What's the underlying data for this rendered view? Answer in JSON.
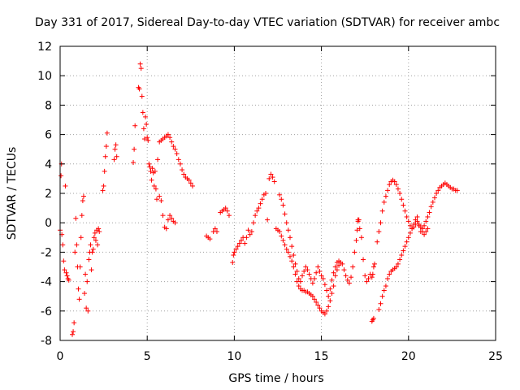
{
  "chart_data": {
    "type": "scatter",
    "title": "Day 331 of 2017, Sidereal Day-to-day VTEC variation (SDTVAR) for receiver ambc",
    "xlabel": "GPS time / hours",
    "ylabel": "SDTVAR / TECUs",
    "xlim": [
      0,
      25
    ],
    "ylim": [
      -8,
      12
    ],
    "xticks": [
      0,
      5,
      10,
      15,
      20,
      25
    ],
    "yticks": [
      -8,
      -6,
      -4,
      -2,
      0,
      2,
      4,
      6,
      8,
      10,
      12
    ],
    "grid": true,
    "marker": "plus",
    "color": "#ff0000",
    "series": [
      {
        "name": "SDTVAR",
        "points": [
          [
            0.0,
            -0.5
          ],
          [
            0.05,
            3.2
          ],
          [
            0.08,
            4.0
          ],
          [
            0.1,
            -0.8
          ],
          [
            0.15,
            -1.5
          ],
          [
            0.2,
            -2.6
          ],
          [
            0.25,
            -3.2
          ],
          [
            0.3,
            2.5
          ],
          [
            0.35,
            -3.4
          ],
          [
            0.4,
            -3.6
          ],
          [
            0.45,
            -3.8
          ],
          [
            0.5,
            -3.9
          ],
          [
            0.7,
            -7.6
          ],
          [
            0.75,
            -7.4
          ],
          [
            0.8,
            -6.8
          ],
          [
            0.85,
            -2.0
          ],
          [
            0.9,
            0.3
          ],
          [
            0.95,
            -1.5
          ],
          [
            1.0,
            -3.0
          ],
          [
            1.05,
            -4.5
          ],
          [
            1.1,
            -5.2
          ],
          [
            1.15,
            -3.0
          ],
          [
            1.2,
            -1.0
          ],
          [
            1.25,
            0.5
          ],
          [
            1.3,
            1.5
          ],
          [
            1.35,
            1.8
          ],
          [
            1.4,
            -4.8
          ],
          [
            1.45,
            -3.5
          ],
          [
            1.5,
            -5.8
          ],
          [
            1.55,
            -4.0
          ],
          [
            1.6,
            -6.0
          ],
          [
            1.65,
            -2.5
          ],
          [
            1.7,
            -2.0
          ],
          [
            1.75,
            -1.5
          ],
          [
            1.8,
            -3.2
          ],
          [
            1.85,
            -2.0
          ],
          [
            1.9,
            -1.8
          ],
          [
            1.95,
            -1.0
          ],
          [
            2.0,
            -0.7
          ],
          [
            2.05,
            -1.2
          ],
          [
            2.1,
            -0.5
          ],
          [
            2.15,
            -1.5
          ],
          [
            2.2,
            -0.4
          ],
          [
            2.25,
            -0.6
          ],
          [
            2.45,
            2.2
          ],
          [
            2.5,
            2.5
          ],
          [
            2.55,
            3.5
          ],
          [
            2.6,
            4.5
          ],
          [
            2.65,
            5.2
          ],
          [
            2.7,
            6.1
          ],
          [
            3.1,
            4.3
          ],
          [
            3.15,
            5.0
          ],
          [
            3.2,
            5.3
          ],
          [
            3.25,
            4.5
          ],
          [
            4.2,
            4.1
          ],
          [
            4.25,
            5.0
          ],
          [
            4.3,
            6.6
          ],
          [
            4.5,
            9.2
          ],
          [
            4.55,
            9.1
          ],
          [
            4.6,
            10.8
          ],
          [
            4.65,
            10.5
          ],
          [
            4.7,
            8.6
          ],
          [
            4.75,
            7.5
          ],
          [
            4.8,
            6.4
          ],
          [
            4.85,
            5.7
          ],
          [
            4.9,
            7.2
          ],
          [
            4.95,
            6.7
          ],
          [
            5.0,
            5.8
          ],
          [
            5.05,
            5.6
          ],
          [
            5.1,
            4.0
          ],
          [
            5.15,
            3.8
          ],
          [
            5.2,
            3.5
          ],
          [
            5.25,
            2.9
          ],
          [
            5.3,
            3.7
          ],
          [
            5.35,
            3.4
          ],
          [
            5.4,
            2.5
          ],
          [
            5.45,
            3.5
          ],
          [
            5.5,
            2.3
          ],
          [
            5.55,
            1.6
          ],
          [
            5.6,
            4.3
          ],
          [
            5.7,
            1.8
          ],
          [
            5.8,
            1.5
          ],
          [
            5.9,
            0.5
          ],
          [
            6.0,
            -0.3
          ],
          [
            6.1,
            -0.4
          ],
          [
            6.2,
            0.2
          ],
          [
            6.3,
            0.5
          ],
          [
            6.4,
            0.3
          ],
          [
            6.5,
            0.1
          ],
          [
            6.6,
            0.0
          ],
          [
            5.7,
            5.5
          ],
          [
            5.8,
            5.6
          ],
          [
            5.9,
            5.7
          ],
          [
            6.0,
            5.8
          ],
          [
            6.1,
            5.9
          ],
          [
            6.2,
            6.0
          ],
          [
            6.3,
            5.8
          ],
          [
            6.4,
            5.5
          ],
          [
            6.5,
            5.2
          ],
          [
            6.6,
            5.0
          ],
          [
            6.7,
            4.7
          ],
          [
            6.8,
            4.3
          ],
          [
            6.9,
            4.0
          ],
          [
            7.0,
            3.6
          ],
          [
            7.1,
            3.3
          ],
          [
            7.2,
            3.1
          ],
          [
            7.3,
            3.0
          ],
          [
            7.4,
            2.9
          ],
          [
            7.5,
            2.7
          ],
          [
            7.6,
            2.5
          ],
          [
            8.4,
            -0.9
          ],
          [
            8.5,
            -1.0
          ],
          [
            8.6,
            -1.1
          ],
          [
            8.8,
            -0.6
          ],
          [
            8.9,
            -0.4
          ],
          [
            9.0,
            -0.6
          ],
          [
            9.2,
            0.7
          ],
          [
            9.3,
            0.8
          ],
          [
            9.4,
            0.9
          ],
          [
            9.5,
            1.0
          ],
          [
            9.6,
            0.8
          ],
          [
            9.7,
            0.5
          ],
          [
            9.9,
            -2.7
          ],
          [
            9.95,
            -2.2
          ],
          [
            10.0,
            -2.0
          ],
          [
            10.1,
            -1.8
          ],
          [
            10.2,
            -1.6
          ],
          [
            10.3,
            -1.4
          ],
          [
            10.4,
            -1.2
          ],
          [
            10.5,
            -1.0
          ],
          [
            10.6,
            -1.4
          ],
          [
            10.7,
            -1.0
          ],
          [
            10.8,
            -0.5
          ],
          [
            10.9,
            -0.8
          ],
          [
            11.0,
            -0.6
          ],
          [
            11.1,
            0.0
          ],
          [
            11.2,
            0.5
          ],
          [
            11.3,
            0.8
          ],
          [
            11.4,
            1.0
          ],
          [
            11.5,
            1.3
          ],
          [
            11.6,
            1.6
          ],
          [
            11.7,
            1.9
          ],
          [
            11.8,
            2.0
          ],
          [
            11.9,
            0.2
          ],
          [
            12.0,
            3.0
          ],
          [
            12.1,
            3.3
          ],
          [
            12.2,
            3.1
          ],
          [
            12.3,
            2.8
          ],
          [
            12.4,
            -0.4
          ],
          [
            12.5,
            -0.5
          ],
          [
            12.6,
            -0.6
          ],
          [
            12.7,
            -0.9
          ],
          [
            12.8,
            -1.2
          ],
          [
            12.9,
            -1.5
          ],
          [
            13.0,
            -1.8
          ],
          [
            13.1,
            -2.0
          ],
          [
            13.2,
            -2.3
          ],
          [
            13.3,
            -2.6
          ],
          [
            13.4,
            -3.0
          ],
          [
            13.5,
            -3.5
          ],
          [
            13.6,
            -4.0
          ],
          [
            13.7,
            -4.3
          ],
          [
            13.8,
            -4.5
          ],
          [
            13.9,
            -4.6
          ],
          [
            14.0,
            -4.6
          ],
          [
            14.1,
            -4.7
          ],
          [
            14.2,
            -4.7
          ],
          [
            14.3,
            -4.8
          ],
          [
            14.4,
            -4.9
          ],
          [
            14.5,
            -5.0
          ],
          [
            14.6,
            -5.2
          ],
          [
            14.7,
            -5.4
          ],
          [
            14.8,
            -5.6
          ],
          [
            14.9,
            -5.8
          ],
          [
            15.0,
            -6.0
          ],
          [
            15.1,
            -6.1
          ],
          [
            15.2,
            -6.2
          ],
          [
            15.3,
            -6.0
          ],
          [
            15.4,
            -5.7
          ],
          [
            15.5,
            -5.3
          ],
          [
            15.6,
            -4.8
          ],
          [
            15.7,
            -4.3
          ],
          [
            15.8,
            -3.6
          ],
          [
            15.9,
            -3.2
          ],
          [
            16.0,
            -2.9
          ],
          [
            16.1,
            -2.7
          ],
          [
            16.2,
            -2.8
          ],
          [
            16.3,
            -3.2
          ],
          [
            16.4,
            -3.6
          ],
          [
            16.5,
            -3.9
          ],
          [
            16.6,
            -4.1
          ],
          [
            16.7,
            -3.7
          ],
          [
            16.8,
            -3.0
          ],
          [
            16.9,
            -2.0
          ],
          [
            17.0,
            -1.2
          ],
          [
            17.05,
            -0.5
          ],
          [
            17.1,
            0.1
          ],
          [
            17.15,
            0.2
          ],
          [
            12.6,
            1.9
          ],
          [
            12.7,
            1.6
          ],
          [
            12.8,
            1.2
          ],
          [
            12.9,
            0.6
          ],
          [
            13.0,
            0.0
          ],
          [
            13.1,
            -0.5
          ],
          [
            13.2,
            -1.0
          ],
          [
            13.3,
            -1.6
          ],
          [
            13.4,
            -2.2
          ],
          [
            13.5,
            -2.8
          ],
          [
            13.6,
            -3.3
          ],
          [
            13.7,
            -3.8
          ],
          [
            13.8,
            -4.0
          ],
          [
            13.9,
            -3.6
          ],
          [
            14.0,
            -3.3
          ],
          [
            14.1,
            -3.0
          ],
          [
            14.2,
            -3.2
          ],
          [
            14.3,
            -3.5
          ],
          [
            14.4,
            -3.8
          ],
          [
            14.5,
            -4.1
          ],
          [
            14.6,
            -3.8
          ],
          [
            14.7,
            -3.4
          ],
          [
            14.8,
            -3.0
          ],
          [
            14.9,
            -3.3
          ],
          [
            15.0,
            -3.6
          ],
          [
            15.1,
            -3.8
          ],
          [
            15.2,
            -4.2
          ],
          [
            15.3,
            -4.6
          ],
          [
            15.4,
            -5.0
          ],
          [
            15.5,
            -4.5
          ],
          [
            15.6,
            -3.9
          ],
          [
            15.7,
            -3.4
          ],
          [
            15.8,
            -3.0
          ],
          [
            15.9,
            -2.7
          ],
          [
            16.0,
            -2.6
          ],
          [
            17.9,
            -3.7
          ],
          [
            17.95,
            -3.5
          ],
          [
            18.0,
            -3.0
          ],
          [
            18.05,
            -2.8
          ],
          [
            17.9,
            -6.7
          ],
          [
            17.95,
            -6.6
          ],
          [
            18.0,
            -6.5
          ],
          [
            18.3,
            -5.9
          ],
          [
            18.4,
            -5.5
          ],
          [
            18.5,
            -5.0
          ],
          [
            18.6,
            -4.6
          ],
          [
            18.7,
            -4.3
          ],
          [
            18.8,
            -3.8
          ],
          [
            18.9,
            -3.5
          ],
          [
            19.0,
            -3.3
          ],
          [
            19.1,
            -3.2
          ],
          [
            19.2,
            -3.1
          ],
          [
            19.3,
            -3.0
          ],
          [
            19.4,
            -2.8
          ],
          [
            19.5,
            -2.5
          ],
          [
            19.6,
            -2.2
          ],
          [
            19.7,
            -1.9
          ],
          [
            19.8,
            -1.6
          ],
          [
            19.9,
            -1.3
          ],
          [
            20.0,
            -1.0
          ],
          [
            20.1,
            -0.7
          ],
          [
            20.2,
            -0.4
          ],
          [
            20.3,
            -0.1
          ],
          [
            20.4,
            0.2
          ],
          [
            20.5,
            0.4
          ],
          [
            20.6,
            -0.2
          ],
          [
            20.7,
            -0.6
          ],
          [
            20.8,
            -0.4
          ],
          [
            20.9,
            -0.2
          ],
          [
            21.0,
            0.1
          ],
          [
            21.1,
            0.4
          ],
          [
            21.2,
            0.7
          ],
          [
            21.3,
            1.1
          ],
          [
            21.4,
            1.4
          ],
          [
            21.5,
            1.7
          ],
          [
            21.6,
            2.0
          ],
          [
            21.7,
            2.2
          ],
          [
            21.8,
            2.4
          ],
          [
            21.9,
            2.5
          ],
          [
            22.0,
            2.6
          ],
          [
            22.1,
            2.7
          ],
          [
            22.2,
            2.6
          ],
          [
            22.3,
            2.5
          ],
          [
            22.4,
            2.4
          ],
          [
            22.5,
            2.3
          ],
          [
            22.6,
            2.3
          ],
          [
            22.7,
            2.2
          ],
          [
            22.8,
            2.2
          ],
          [
            18.2,
            -1.3
          ],
          [
            18.3,
            -0.6
          ],
          [
            18.4,
            0.0
          ],
          [
            18.5,
            0.8
          ],
          [
            18.6,
            1.4
          ],
          [
            18.7,
            1.8
          ],
          [
            18.8,
            2.2
          ],
          [
            18.9,
            2.6
          ],
          [
            19.0,
            2.8
          ],
          [
            19.1,
            2.9
          ],
          [
            19.2,
            2.8
          ],
          [
            19.3,
            2.6
          ],
          [
            19.4,
            2.3
          ],
          [
            19.5,
            2.0
          ],
          [
            19.6,
            1.6
          ],
          [
            19.7,
            1.2
          ],
          [
            19.8,
            0.8
          ],
          [
            19.9,
            0.4
          ],
          [
            20.0,
            0.1
          ],
          [
            20.1,
            -0.2
          ],
          [
            20.2,
            -0.4
          ],
          [
            20.3,
            -0.3
          ],
          [
            20.4,
            -0.1
          ],
          [
            20.5,
            0.1
          ],
          [
            20.6,
            -0.1
          ],
          [
            20.7,
            -0.3
          ],
          [
            20.8,
            -0.6
          ],
          [
            20.9,
            -0.8
          ],
          [
            21.0,
            -0.6
          ],
          [
            21.1,
            -0.4
          ],
          [
            17.1,
            0.2
          ],
          [
            17.2,
            -0.4
          ],
          [
            17.3,
            -1.0
          ],
          [
            17.4,
            -2.5
          ],
          [
            17.5,
            -3.6
          ],
          [
            17.6,
            -4.0
          ],
          [
            17.7,
            -3.8
          ],
          [
            17.8,
            -3.5
          ]
        ]
      }
    ]
  }
}
